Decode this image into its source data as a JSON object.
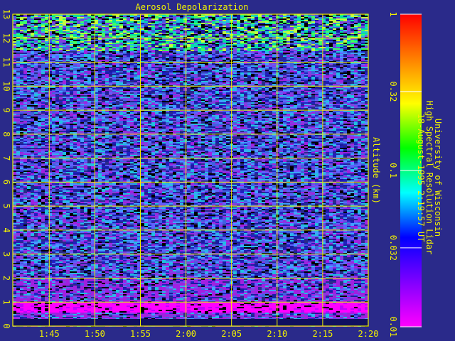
{
  "chart_data": {
    "type": "heatmap",
    "title": "Aerosol Depolarization",
    "xlabel": "",
    "ylabel": "Altitude (km)",
    "x_ticks": [
      "1:45",
      "1:50",
      "1:55",
      "2:00",
      "2:05",
      "2:10",
      "2:15",
      "2:20"
    ],
    "y_ticks": [
      "0",
      "1",
      "2",
      "3",
      "4",
      "5",
      "6",
      "7",
      "8",
      "9",
      "10",
      "11",
      "12",
      "13"
    ],
    "ylim": [
      0,
      13
    ],
    "xlim": [
      "1:41",
      "2:20"
    ],
    "grid": true,
    "colorbar": {
      "scale": "log",
      "range": [
        0.01,
        1
      ],
      "ticks": [
        "0.01",
        "0.032",
        "0.1",
        "0.32",
        "1"
      ],
      "colors": [
        "#ff00ff",
        "#8000ff",
        "#0000ff",
        "#00ffff",
        "#00ff00",
        "#ffff00",
        "#ff8000",
        "#ff0000"
      ]
    },
    "colors": {
      "background": "#2a2a8a",
      "grid": "#f2f200",
      "text": "#f2f200",
      "low_altitude_band": "#ff00ff"
    }
  },
  "info": {
    "line1": "University of Wisconsin",
    "line2": "High Spectral Resolution Lidar",
    "line3": "18-August-1995  2:19:57 UT"
  }
}
